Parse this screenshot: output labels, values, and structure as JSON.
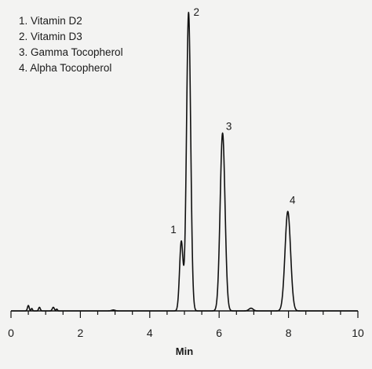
{
  "chart_data": {
    "type": "line",
    "title": "",
    "xlabel": "Min",
    "ylabel": "",
    "xlim": [
      0,
      10
    ],
    "x_ticks": [
      0,
      2,
      4,
      6,
      8,
      10
    ],
    "x_tick_labels": [
      "0",
      "2",
      "4",
      "6",
      "8",
      "10"
    ],
    "grid": false,
    "legend_position": "top-left",
    "legend": [
      "1. Vitamin D2",
      "2. Vitamin D3",
      "3. Gamma Tocopherol",
      "4. Alpha Tocopherol"
    ],
    "line_color": "#111111",
    "baseline": 0,
    "y_max": 100,
    "peaks": [
      {
        "label": "1",
        "name": "Vitamin D2",
        "rt": 4.91,
        "height": 23,
        "width": 0.05
      },
      {
        "label": "2",
        "name": "Vitamin D3",
        "rt": 5.12,
        "height": 99,
        "width": 0.06
      },
      {
        "label": "3",
        "name": "Gamma Tocopherol",
        "rt": 6.1,
        "height": 59,
        "width": 0.07
      },
      {
        "label": "4",
        "name": "Alpha Tocopherol",
        "rt": 7.98,
        "height": 33,
        "width": 0.08
      }
    ],
    "minor_peaks": [
      {
        "rt": 0.5,
        "height": 1.8,
        "width": 0.025
      },
      {
        "rt": 0.6,
        "height": 0.8,
        "width": 0.02
      },
      {
        "rt": 0.82,
        "height": 1.2,
        "width": 0.025
      },
      {
        "rt": 1.22,
        "height": 1.2,
        "width": 0.03
      },
      {
        "rt": 1.32,
        "height": 0.6,
        "width": 0.02
      },
      {
        "rt": 2.95,
        "height": 0.3,
        "width": 0.05
      },
      {
        "rt": 6.92,
        "height": 0.9,
        "width": 0.06
      }
    ]
  }
}
